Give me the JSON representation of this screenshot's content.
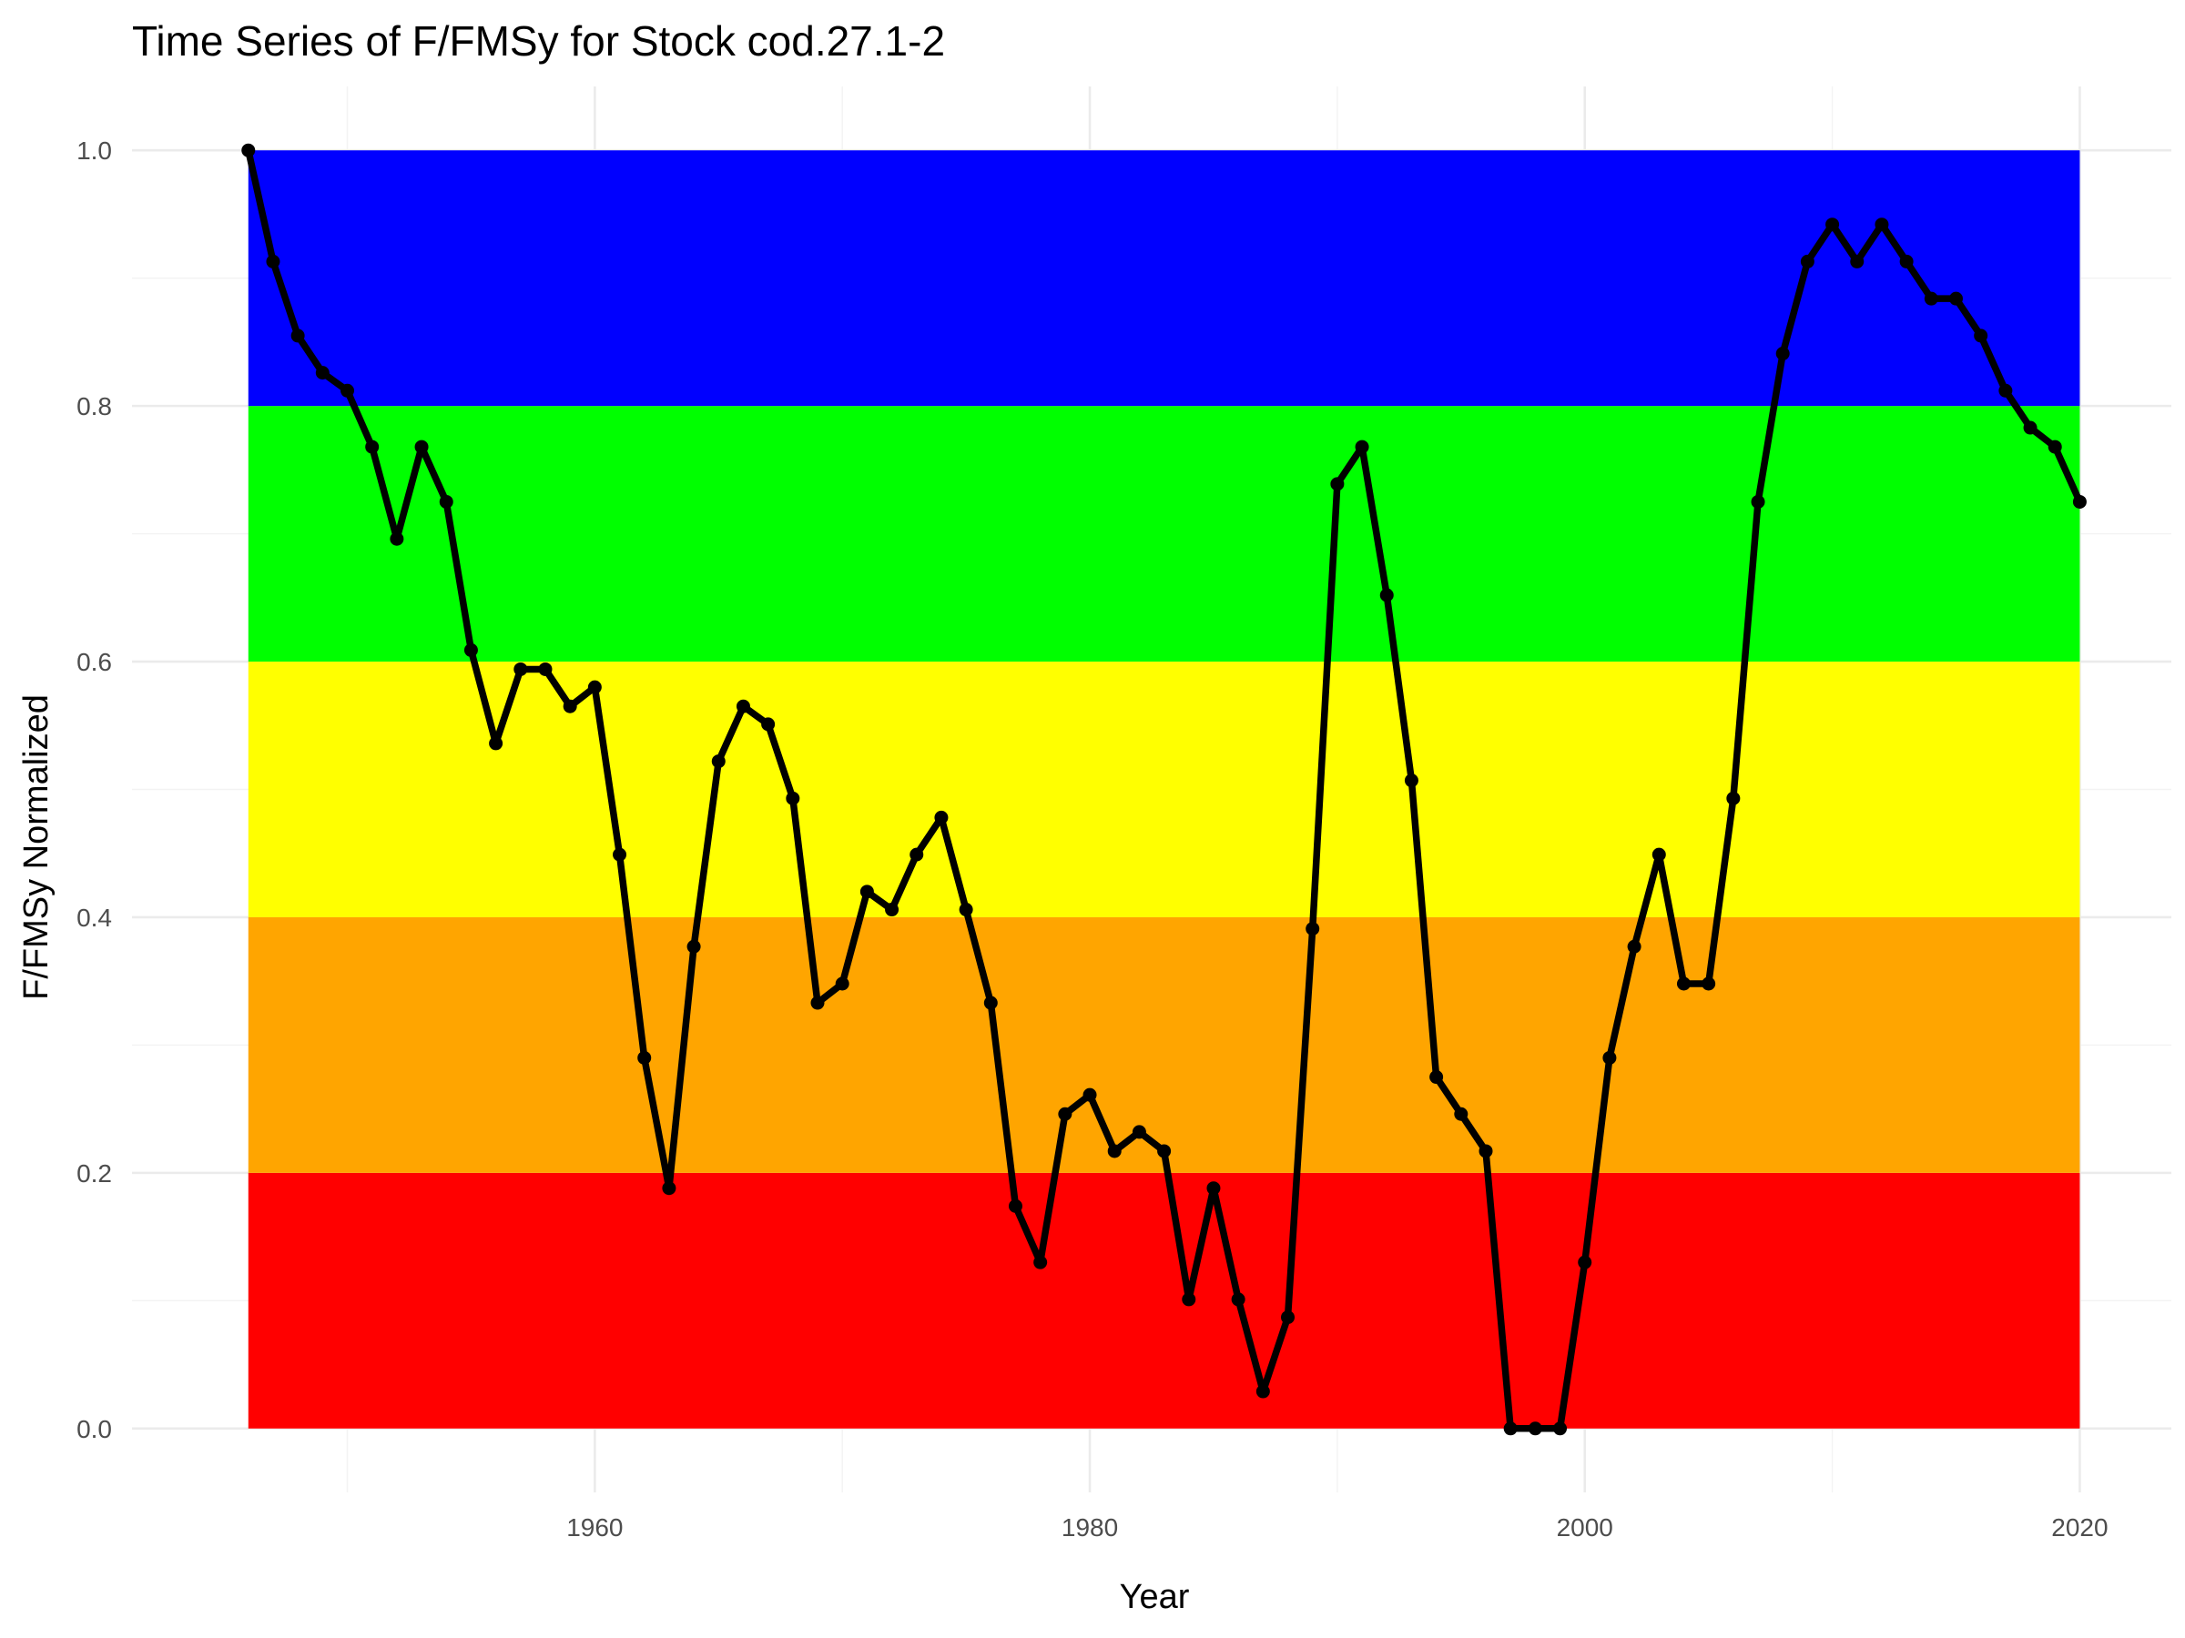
{
  "chart_data": {
    "type": "line",
    "title": "Time Series of F/FMSy for Stock cod.27.1-2",
    "xlabel": "Year",
    "ylabel": "F/FMSy Normalized",
    "xlim": [
      1941.3,
      2023.7
    ],
    "ylim": [
      -0.05,
      1.05
    ],
    "x_ticks": [
      1960,
      1980,
      2000,
      2020
    ],
    "y_ticks": [
      0.0,
      0.2,
      0.4,
      0.6,
      0.8,
      1.0
    ],
    "x_tick_labels": [
      "1960",
      "1980",
      "2000",
      "2020"
    ],
    "y_tick_labels": [
      "0.0",
      "0.2",
      "0.4",
      "0.6",
      "0.8",
      "1.0"
    ],
    "grid": true,
    "bands": [
      {
        "from": 0.0,
        "to": 0.2,
        "color": "#ff0000"
      },
      {
        "from": 0.2,
        "to": 0.4,
        "color": "#ffa500"
      },
      {
        "from": 0.4,
        "to": 0.6,
        "color": "#ffff00"
      },
      {
        "from": 0.6,
        "to": 0.8,
        "color": "#00ff00"
      },
      {
        "from": 0.8,
        "to": 1.0,
        "color": "#0000ff"
      }
    ],
    "band_x_range": [
      1946,
      2020
    ],
    "series": [
      {
        "color": "#000000",
        "x": [
          1946,
          1947,
          1948,
          1949,
          1950,
          1951,
          1952,
          1953,
          1954,
          1955,
          1956,
          1957,
          1958,
          1959,
          1960,
          1961,
          1962,
          1963,
          1964,
          1965,
          1966,
          1967,
          1968,
          1969,
          1970,
          1971,
          1972,
          1973,
          1974,
          1975,
          1976,
          1977,
          1978,
          1979,
          1980,
          1981,
          1982,
          1983,
          1984,
          1985,
          1986,
          1987,
          1988,
          1989,
          1990,
          1991,
          1992,
          1993,
          1994,
          1995,
          1996,
          1997,
          1998,
          1999,
          2000,
          2001,
          2002,
          2003,
          2004,
          2005,
          2006,
          2007,
          2008,
          2009,
          2010,
          2011,
          2012,
          2013,
          2014,
          2015,
          2016,
          2017,
          2018,
          2019,
          2020
        ],
        "y": [
          1.0,
          0.913,
          0.855,
          0.826,
          0.812,
          0.768,
          0.696,
          0.768,
          0.725,
          0.609,
          0.536,
          0.594,
          0.594,
          0.565,
          0.58,
          0.449,
          0.29,
          0.188,
          0.377,
          0.522,
          0.565,
          0.551,
          0.493,
          0.333,
          0.348,
          0.42,
          0.406,
          0.449,
          0.478,
          0.406,
          0.333,
          0.174,
          0.13,
          0.246,
          0.261,
          0.217,
          0.232,
          0.217,
          0.101,
          0.188,
          0.101,
          0.029,
          0.087,
          0.391,
          0.739,
          0.768,
          0.652,
          0.507,
          0.275,
          0.246,
          0.217,
          0.0,
          0.0,
          0.0,
          0.13,
          0.29,
          0.377,
          0.449,
          0.348,
          0.348,
          0.493,
          0.725,
          0.841,
          0.913,
          0.942,
          0.913,
          0.942,
          0.913,
          0.884,
          0.884,
          0.855,
          0.812,
          0.783,
          0.768,
          0.725
        ]
      }
    ]
  }
}
